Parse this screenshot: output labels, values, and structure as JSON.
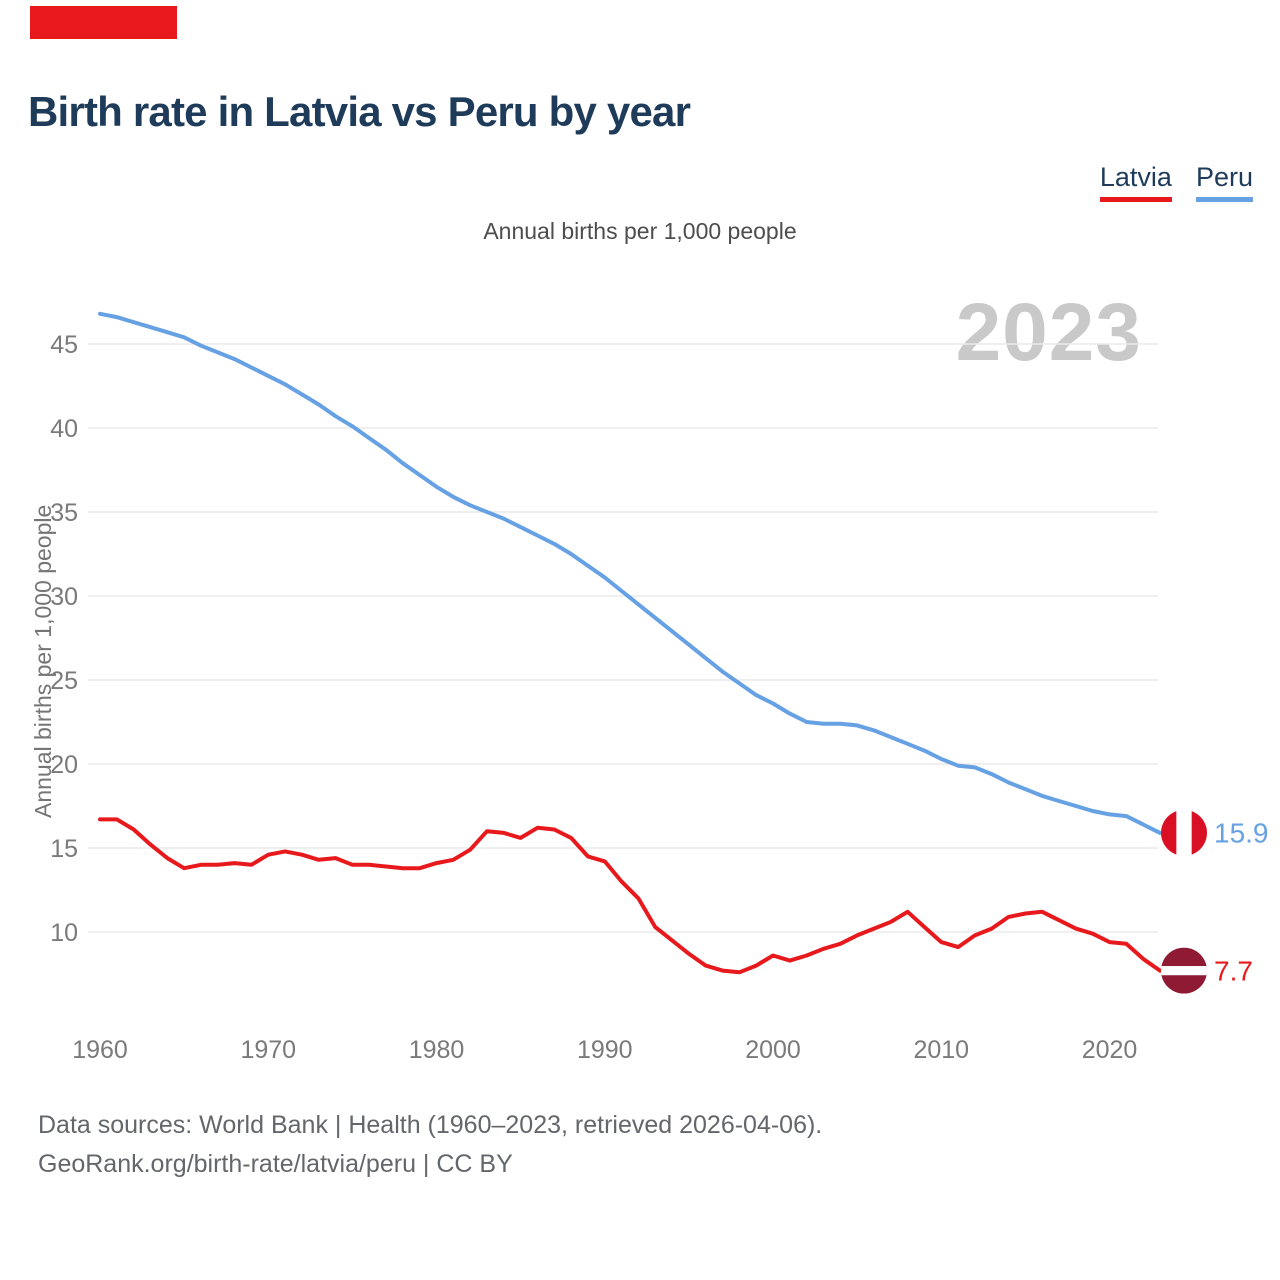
{
  "header": {
    "title": "Birth rate in Latvia vs Peru by year"
  },
  "legend": {
    "latvia_label": "Latvia",
    "peru_label": "Peru"
  },
  "subtitle": "Annual births per 1,000 people",
  "watermark": "2023",
  "colors": {
    "latvia_line": "#e8191c",
    "peru_line": "#66a1e4",
    "latvia_flag_maroon": "#8e1a33",
    "peru_flag_red": "#d91023",
    "title_navy": "#1e3c5a",
    "grid": "#eaeaea",
    "tick_text": "#7a7a7a",
    "watermark_gray": "#c9c9c9"
  },
  "chart_data": {
    "type": "line",
    "title": "Birth rate in Latvia vs Peru by year",
    "subtitle": "Annual births per 1,000 people",
    "ylabel": "Annual births per 1,000 people",
    "xlim": [
      1960,
      2023
    ],
    "ylim": [
      6.5,
      48
    ],
    "grid": true,
    "legend_position": "top-right",
    "x_ticks": [
      1960,
      1970,
      1980,
      1990,
      2000,
      2010,
      2020
    ],
    "y_ticks": [
      10,
      15,
      20,
      25,
      30,
      35,
      40,
      45
    ],
    "x": [
      1960,
      1961,
      1962,
      1963,
      1964,
      1965,
      1966,
      1967,
      1968,
      1969,
      1970,
      1971,
      1972,
      1973,
      1974,
      1975,
      1976,
      1977,
      1978,
      1979,
      1980,
      1981,
      1982,
      1983,
      1984,
      1985,
      1986,
      1987,
      1988,
      1989,
      1990,
      1991,
      1992,
      1993,
      1994,
      1995,
      1996,
      1997,
      1998,
      1999,
      2000,
      2001,
      2002,
      2003,
      2004,
      2005,
      2006,
      2007,
      2008,
      2009,
      2010,
      2011,
      2012,
      2013,
      2014,
      2015,
      2016,
      2017,
      2018,
      2019,
      2020,
      2021,
      2022,
      2023
    ],
    "series": [
      {
        "name": "Peru",
        "color": "#66a1e4",
        "end_label": "15.9",
        "flag": "peru-flag",
        "values": [
          46.8,
          46.6,
          46.3,
          46.0,
          45.7,
          45.4,
          44.9,
          44.5,
          44.1,
          43.6,
          43.1,
          42.6,
          42.0,
          41.4,
          40.7,
          40.1,
          39.4,
          38.7,
          37.9,
          37.2,
          36.5,
          35.9,
          35.4,
          35.0,
          34.6,
          34.1,
          33.6,
          33.1,
          32.5,
          31.8,
          31.1,
          30.3,
          29.5,
          28.7,
          27.9,
          27.1,
          26.3,
          25.5,
          24.8,
          24.1,
          23.6,
          23.0,
          22.5,
          22.4,
          22.4,
          22.3,
          22.0,
          21.6,
          21.2,
          20.8,
          20.3,
          19.9,
          19.8,
          19.4,
          18.9,
          18.5,
          18.1,
          17.8,
          17.5,
          17.2,
          17.0,
          16.9,
          16.4,
          15.9
        ]
      },
      {
        "name": "Latvia",
        "color": "#e8191c",
        "end_label": "7.7",
        "flag": "latvia-flag",
        "values": [
          16.7,
          16.7,
          16.1,
          15.2,
          14.4,
          13.8,
          14.0,
          14.0,
          14.1,
          14.0,
          14.6,
          14.8,
          14.6,
          14.3,
          14.4,
          14.0,
          14.0,
          13.9,
          13.8,
          13.8,
          14.1,
          14.3,
          14.9,
          16.0,
          15.9,
          15.6,
          16.2,
          16.1,
          15.6,
          14.5,
          14.2,
          13.0,
          12.0,
          10.3,
          9.5,
          8.7,
          8.0,
          7.7,
          7.6,
          8.0,
          8.6,
          8.3,
          8.6,
          9.0,
          9.3,
          9.8,
          10.2,
          10.6,
          11.2,
          10.3,
          9.4,
          9.1,
          9.8,
          10.2,
          10.9,
          11.1,
          11.2,
          10.7,
          10.2,
          9.9,
          9.4,
          9.3,
          8.4,
          7.7
        ]
      }
    ]
  },
  "footer": {
    "line1": "Data sources: World Bank | Health (1960–2023, retrieved 2026-04-06).",
    "line2": "GeoRank.org/birth-rate/latvia/peru | CC BY"
  }
}
